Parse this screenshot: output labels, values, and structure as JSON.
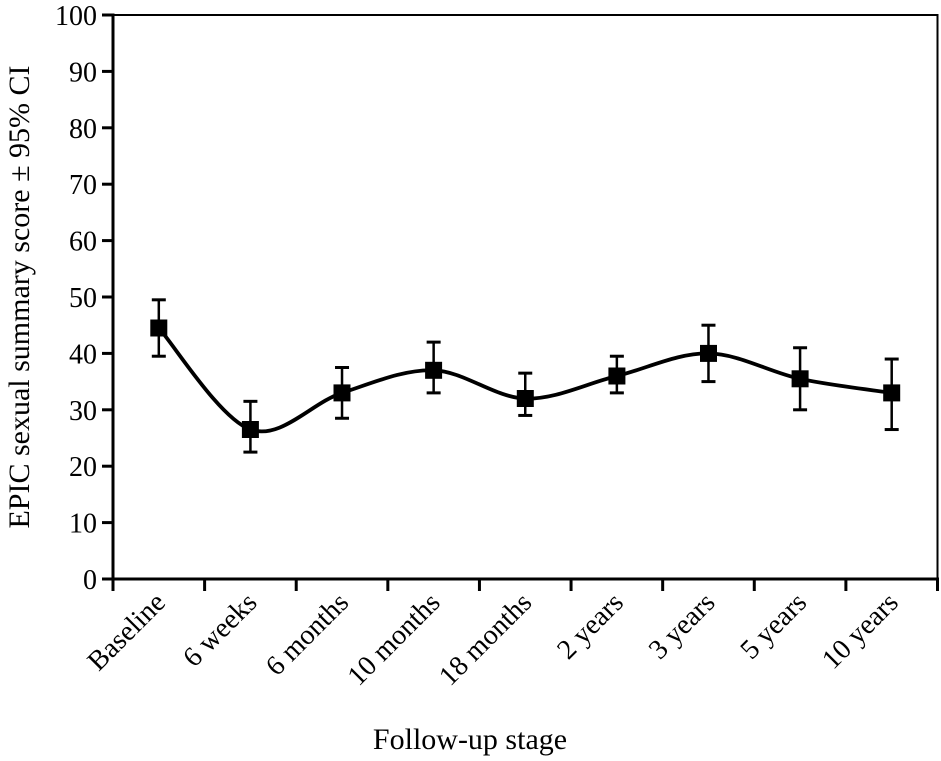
{
  "chart_data": {
    "type": "line",
    "title": "",
    "xlabel": "Follow-up stage",
    "ylabel": "EPIC sexual summary score ± 95% CI",
    "categories": [
      "Baseline",
      "6 weeks",
      "6 months",
      "10 months",
      "18 months",
      "2 years",
      "3 years",
      "5 years",
      "10 years"
    ],
    "series": [
      {
        "name": "EPIC sexual summary score",
        "values": [
          44.5,
          26.5,
          33,
          37,
          32,
          36,
          40,
          35.5,
          33
        ],
        "ci_low": [
          39.5,
          22.5,
          28.5,
          33,
          29,
          33,
          35,
          30,
          26.5
        ],
        "ci_high": [
          49.5,
          31.5,
          37.5,
          42,
          36.5,
          39.5,
          45,
          41,
          39
        ]
      }
    ],
    "ylim": [
      0,
      100
    ],
    "yticks": [
      0,
      10,
      20,
      30,
      40,
      50,
      60,
      70,
      80,
      90,
      100
    ],
    "grid": false,
    "legend": false,
    "smooth": true,
    "marker": "square",
    "error_bars": "95% CI",
    "colors": {
      "line": "#000000",
      "marker": "#000000",
      "axis": "#000000",
      "text": "#000000",
      "background": "#ffffff"
    }
  }
}
